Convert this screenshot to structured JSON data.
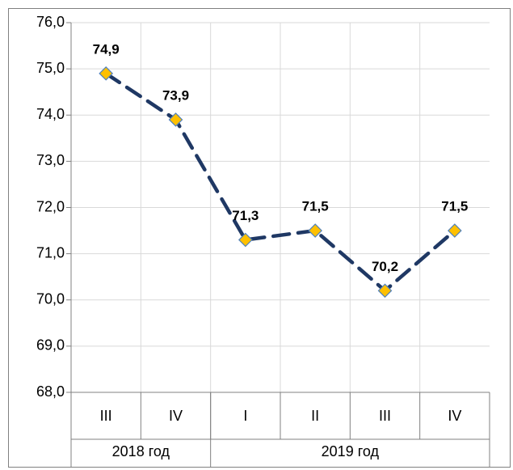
{
  "chart_data": {
    "type": "line",
    "categories": [
      "III",
      "IV",
      "I",
      "II",
      "III",
      "IV"
    ],
    "group_labels": [
      "2018 год",
      "2019 год"
    ],
    "group_sizes": [
      2,
      4
    ],
    "series": [
      {
        "color": "#1f3864",
        "marker_color": "#ffc000",
        "values": [
          74.9,
          73.9,
          71.3,
          71.5,
          70.2,
          71.5
        ],
        "value_labels": [
          "74,9",
          "73,9",
          "71,3",
          "71,5",
          "70,2",
          "71,5"
        ]
      }
    ],
    "ylim": [
      68,
      76
    ],
    "yticks": [
      {
        "value": 68,
        "label": "68,0"
      },
      {
        "value": 69,
        "label": "69,0"
      },
      {
        "value": 70,
        "label": "70,0"
      },
      {
        "value": 71,
        "label": "71,0"
      },
      {
        "value": 72,
        "label": "72,0"
      },
      {
        "value": 73,
        "label": "73,0"
      },
      {
        "value": 74,
        "label": "74,0"
      },
      {
        "value": 75,
        "label": "75,0"
      },
      {
        "value": 76,
        "label": "76,0"
      }
    ],
    "grid": true
  }
}
